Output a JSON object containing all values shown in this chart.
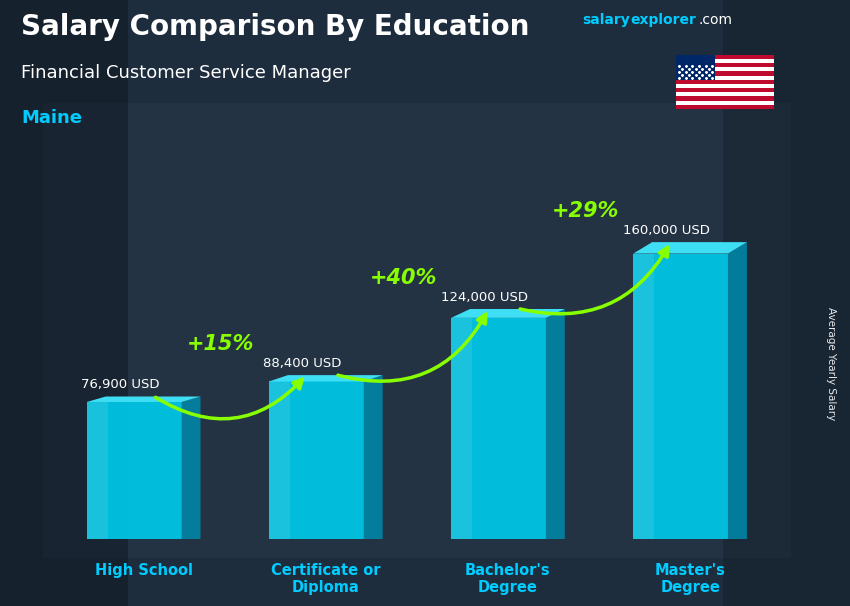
{
  "title": "Salary Comparison By Education",
  "subtitle": "Financial Customer Service Manager",
  "location": "Maine",
  "ylabel": "Average Yearly Salary",
  "categories": [
    "High School",
    "Certificate or\nDiploma",
    "Bachelor's\nDegree",
    "Master's\nDegree"
  ],
  "values": [
    76900,
    88400,
    124000,
    160000
  ],
  "value_labels": [
    "76,900 USD",
    "88,400 USD",
    "124,000 USD",
    "160,000 USD"
  ],
  "pct_labels": [
    "+15%",
    "+40%",
    "+29%"
  ],
  "bar_color_front": "#00c8e8",
  "bar_color_top": "#40e8ff",
  "bar_color_side": "#0088aa",
  "bg_color": "#1e2d3d",
  "title_color": "#ffffff",
  "subtitle_color": "#ffffff",
  "location_color": "#00ccff",
  "value_label_color": "#ffffff",
  "pct_color": "#88ff00",
  "xlabel_color": "#00ccff",
  "arrow_color": "#88ff00",
  "figsize": [
    8.5,
    6.06
  ],
  "dpi": 100,
  "ylim_max": 190000,
  "bar_width": 0.52
}
